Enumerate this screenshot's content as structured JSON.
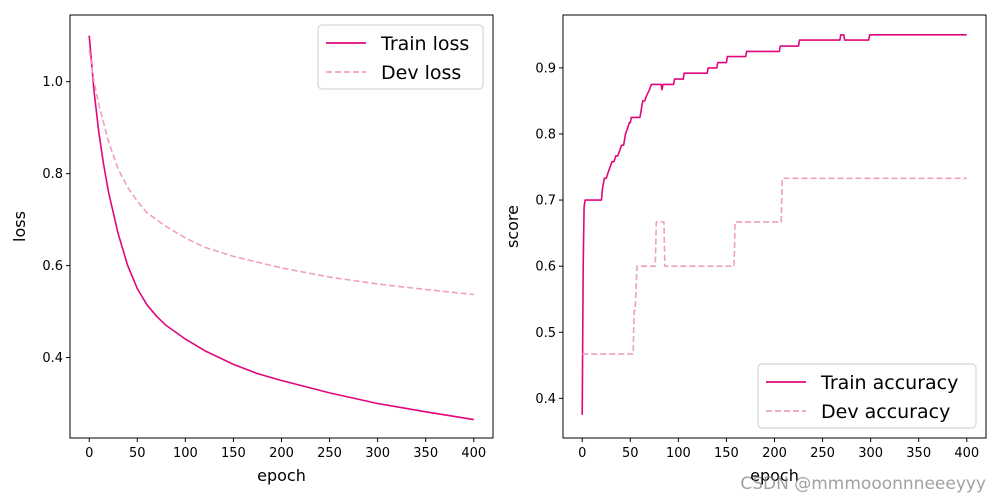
{
  "chart_data": [
    {
      "type": "line",
      "xlabel": "epoch",
      "ylabel": "loss",
      "xlim": [
        -20,
        420
      ],
      "ylim": [
        0.225,
        1.145
      ],
      "xticks": [
        0,
        50,
        100,
        150,
        200,
        250,
        300,
        350,
        400
      ],
      "yticks": [
        0.4,
        0.6,
        0.8,
        1.0
      ],
      "ytick_labels": [
        "0.4",
        "0.6",
        "0.8",
        "1.0"
      ],
      "legend_loc": "upper right",
      "series": [
        {
          "name": "Train loss",
          "style": "solid",
          "color": "#e0077d",
          "x": [
            0,
            5,
            10,
            15,
            20,
            30,
            40,
            50,
            60,
            70,
            80,
            100,
            120,
            150,
            175,
            200,
            250,
            300,
            350,
            400
          ],
          "y": [
            1.1,
            0.98,
            0.89,
            0.82,
            0.76,
            0.67,
            0.6,
            0.55,
            0.515,
            0.49,
            0.47,
            0.44,
            0.415,
            0.385,
            0.365,
            0.35,
            0.323,
            0.3,
            0.282,
            0.265
          ]
        },
        {
          "name": "Dev loss",
          "style": "dashed",
          "color": "#f19ec2",
          "x": [
            0,
            5,
            10,
            20,
            30,
            40,
            50,
            60,
            70,
            80,
            100,
            120,
            150,
            200,
            250,
            300,
            350,
            400
          ],
          "y": [
            1.07,
            1.0,
            0.95,
            0.87,
            0.81,
            0.77,
            0.74,
            0.715,
            0.7,
            0.685,
            0.66,
            0.64,
            0.62,
            0.595,
            0.575,
            0.56,
            0.548,
            0.537
          ]
        }
      ]
    },
    {
      "type": "line",
      "xlabel": "epoch",
      "ylabel": "score",
      "xlim": [
        -20,
        420
      ],
      "ylim": [
        0.34,
        0.98
      ],
      "xticks": [
        0,
        50,
        100,
        150,
        200,
        250,
        300,
        350,
        400
      ],
      "yticks": [
        0.4,
        0.5,
        0.6,
        0.7,
        0.8,
        0.9
      ],
      "ytick_labels": [
        "0.4",
        "0.5",
        "0.6",
        "0.7",
        "0.8",
        "0.9"
      ],
      "legend_loc": "lower right",
      "series": [
        {
          "name": "Train accuracy",
          "style": "solid",
          "color": "#e0077d",
          "x": [
            0,
            1,
            2,
            3,
            20,
            21,
            22,
            23,
            25,
            27,
            29,
            31,
            33,
            35,
            37,
            39,
            41,
            43,
            45,
            47,
            49,
            50,
            51,
            52,
            53,
            54,
            55,
            60,
            61,
            62,
            63,
            65,
            67,
            70,
            72,
            74,
            75,
            77,
            80,
            82,
            83,
            84,
            85,
            86,
            95,
            96,
            105,
            106,
            130,
            131,
            140,
            141,
            150,
            151,
            160,
            161,
            170,
            171,
            205,
            206,
            225,
            226,
            268,
            269,
            272,
            273,
            298,
            299,
            400
          ],
          "y": [
            0.375,
            0.6,
            0.69,
            0.7,
            0.7,
            0.717,
            0.725,
            0.733,
            0.733,
            0.742,
            0.75,
            0.758,
            0.758,
            0.767,
            0.767,
            0.775,
            0.783,
            0.783,
            0.8,
            0.808,
            0.817,
            0.817,
            0.825,
            0.825,
            0.825,
            0.825,
            0.825,
            0.825,
            0.833,
            0.842,
            0.85,
            0.85,
            0.858,
            0.867,
            0.875,
            0.875,
            0.875,
            0.875,
            0.875,
            0.875,
            0.867,
            0.875,
            0.875,
            0.875,
            0.875,
            0.883,
            0.883,
            0.892,
            0.892,
            0.9,
            0.9,
            0.908,
            0.908,
            0.917,
            0.917,
            0.917,
            0.917,
            0.925,
            0.925,
            0.933,
            0.933,
            0.942,
            0.942,
            0.95,
            0.95,
            0.942,
            0.942,
            0.95,
            0.95
          ]
        },
        {
          "name": "Dev accuracy",
          "style": "dashed",
          "color": "#f19ec2",
          "x": [
            0,
            1,
            2,
            53,
            54,
            55,
            56,
            57,
            58,
            76,
            77,
            85,
            86,
            158,
            159,
            207,
            208,
            400
          ],
          "y": [
            0.467,
            0.467,
            0.467,
            0.467,
            0.533,
            0.533,
            0.567,
            0.6,
            0.6,
            0.6,
            0.667,
            0.667,
            0.6,
            0.6,
            0.667,
            0.667,
            0.733,
            0.733
          ]
        }
      ]
    }
  ],
  "watermark": "CSDN @mmmooonnneeeyyy"
}
